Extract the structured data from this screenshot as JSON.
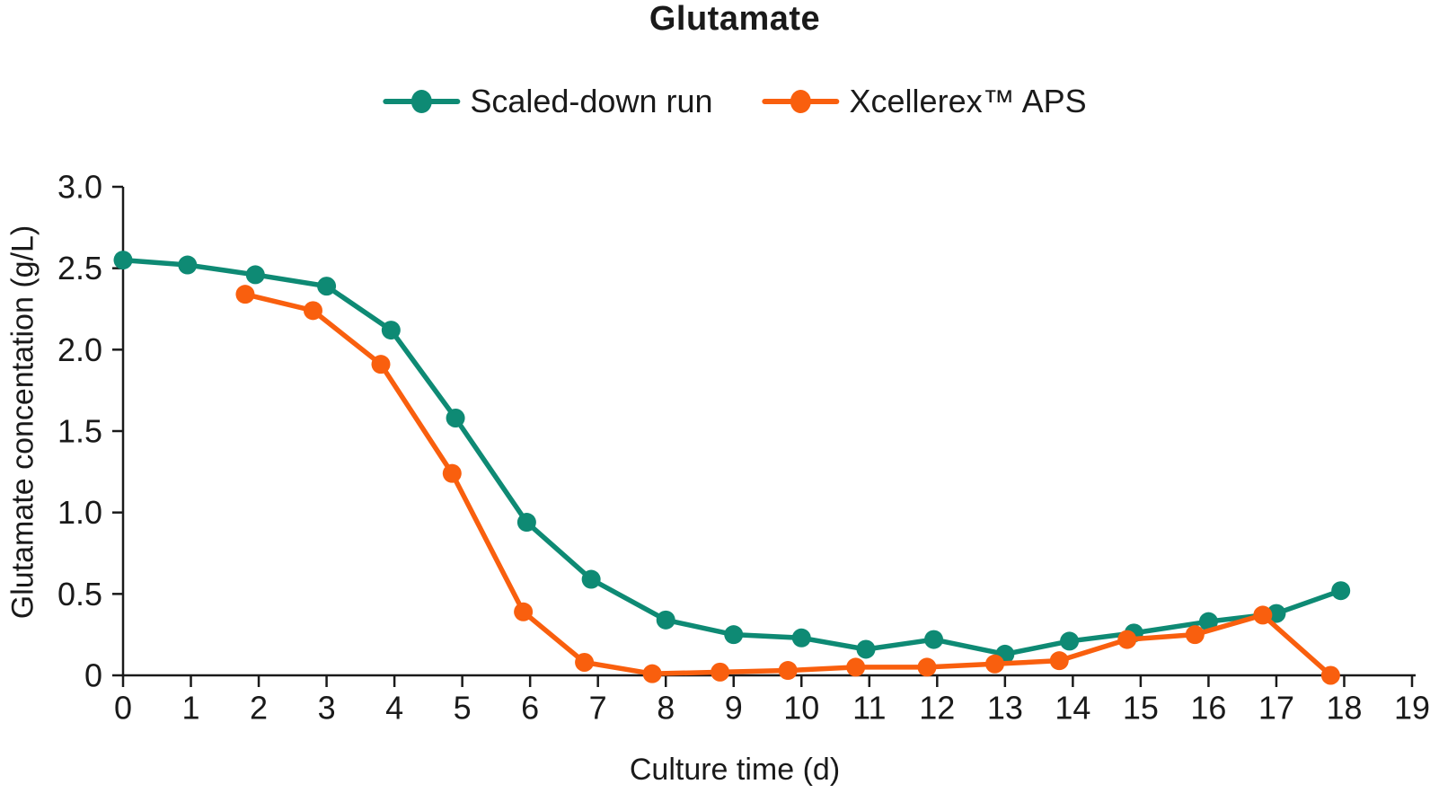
{
  "chart_data": {
    "type": "line",
    "title": "Glutamate",
    "xlabel": "Culture time (d)",
    "ylabel": "Glutamate concentation (g/L)",
    "xlim": [
      0,
      19
    ],
    "ylim": [
      0,
      3.0
    ],
    "x_ticks": [
      0,
      1,
      2,
      3,
      4,
      5,
      6,
      7,
      8,
      9,
      10,
      11,
      12,
      13,
      14,
      15,
      16,
      17,
      18,
      19
    ],
    "x_tick_labels": [
      "0",
      "1",
      "2",
      "3",
      "4",
      "5",
      "6",
      "7",
      "8",
      "9",
      "10",
      "11",
      "12",
      "13",
      "14",
      "15",
      "16",
      "17",
      "18",
      "19"
    ],
    "y_ticks": [
      0,
      0.5,
      1.0,
      1.5,
      2.0,
      2.5,
      3.0
    ],
    "y_tick_labels": [
      "0",
      "0.5",
      "1.0",
      "1.5",
      "2.0",
      "2.5",
      "3.0"
    ],
    "grid": false,
    "legend_position": "top-center",
    "axis_color": "#1a1a1a",
    "series": [
      {
        "name": "Scaled-down run",
        "color": "#0e8a74",
        "x": [
          0,
          0.95,
          1.95,
          3.0,
          3.95,
          4.9,
          5.95,
          6.9,
          8.0,
          9.0,
          10.0,
          10.95,
          11.95,
          13.0,
          13.95,
          14.9,
          16.0,
          17.0,
          17.95
        ],
        "y": [
          2.55,
          2.52,
          2.46,
          2.39,
          2.12,
          1.58,
          0.94,
          0.59,
          0.34,
          0.25,
          0.23,
          0.16,
          0.22,
          0.13,
          0.21,
          0.26,
          0.33,
          0.38,
          0.52
        ]
      },
      {
        "name": "Xcellerex™ APS",
        "color": "#f95f0e",
        "x": [
          1.8,
          2.8,
          3.8,
          4.85,
          5.9,
          6.8,
          7.8,
          8.8,
          9.8,
          10.8,
          11.85,
          12.85,
          13.8,
          14.8,
          15.8,
          16.8,
          17.8
        ],
        "y": [
          2.34,
          2.24,
          1.91,
          1.24,
          0.39,
          0.08,
          0.01,
          0.02,
          0.03,
          0.05,
          0.05,
          0.07,
          0.09,
          0.22,
          0.25,
          0.37,
          0.0
        ]
      }
    ]
  }
}
